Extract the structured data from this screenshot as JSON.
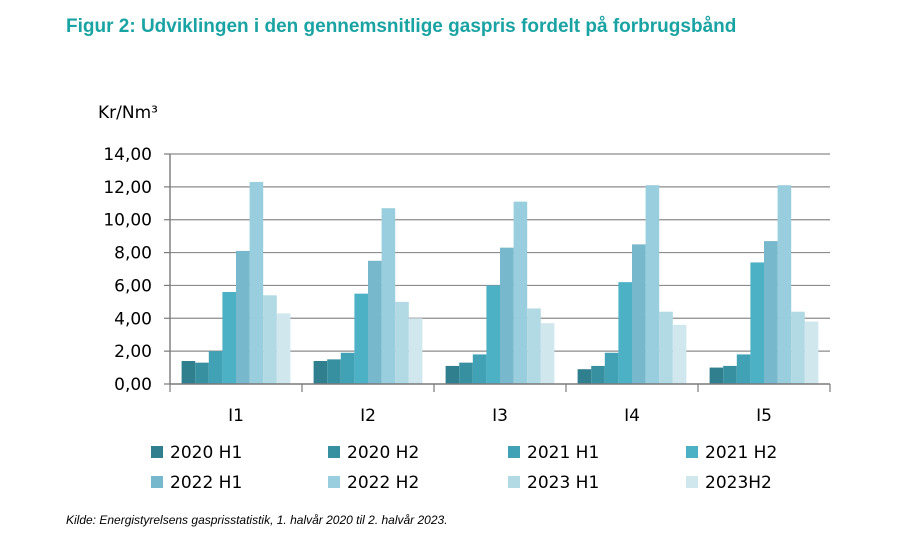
{
  "title": "Figur 2: Udviklingen i den gennemsnitlige gaspris fordelt på forbrugsbånd",
  "source": "Kilde: Energistyrelsens gasprisstatistik, 1. halvår 2020 til 2. halvår 2023.",
  "chart_data": {
    "type": "bar",
    "ylabel": "Kr/Nm³",
    "ylim": [
      0,
      14
    ],
    "yticks": [
      "0,00",
      "2,00",
      "4,00",
      "6,00",
      "8,00",
      "10,00",
      "12,00",
      "14,00"
    ],
    "grid": true,
    "legend_position": "bottom",
    "categories": [
      "I1",
      "I2",
      "I3",
      "I4",
      "I5"
    ],
    "series": [
      {
        "name": "2020 H1",
        "color": "#2f7f8e",
        "values": [
          1.4,
          1.4,
          1.1,
          0.9,
          1.0
        ]
      },
      {
        "name": "2020 H2",
        "color": "#3790a0",
        "values": [
          1.3,
          1.5,
          1.3,
          1.1,
          1.1
        ]
      },
      {
        "name": "2021 H1",
        "color": "#42a2b5",
        "values": [
          2.0,
          1.9,
          1.8,
          1.9,
          1.8
        ]
      },
      {
        "name": "2021 H2",
        "color": "#4db1c6",
        "values": [
          5.6,
          5.5,
          6.0,
          6.2,
          7.4
        ]
      },
      {
        "name": "2022 H1",
        "color": "#78b8cc",
        "values": [
          8.1,
          7.5,
          8.3,
          8.5,
          8.7
        ]
      },
      {
        "name": "2022 H2",
        "color": "#98cedd",
        "values": [
          12.3,
          10.7,
          11.1,
          12.1,
          12.1
        ]
      },
      {
        "name": "2023 H1",
        "color": "#b2dae4",
        "values": [
          5.4,
          5.0,
          4.6,
          4.4,
          4.4
        ]
      },
      {
        "name": "2023H2",
        "color": "#d0e7ee",
        "values": [
          4.3,
          4.0,
          3.7,
          3.6,
          3.8
        ]
      }
    ]
  }
}
